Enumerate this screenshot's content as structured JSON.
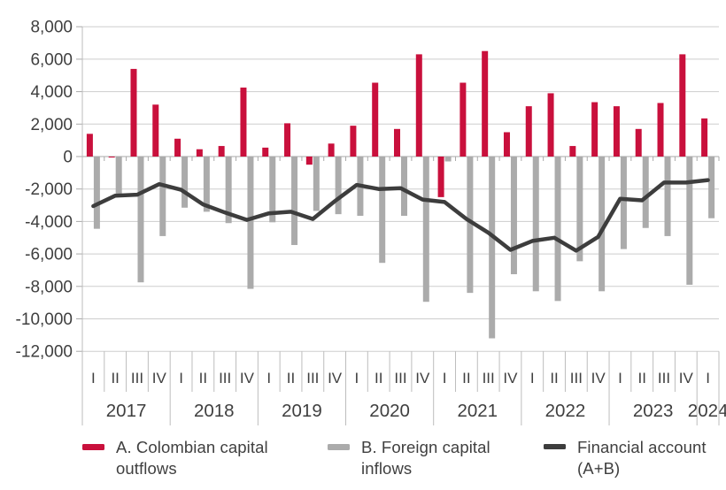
{
  "chart_data": {
    "type": "bar",
    "subtype": "bar-and-line-combo",
    "title": "",
    "xlabel": "",
    "ylabel": "",
    "ylim": [
      -12000,
      8000
    ],
    "grid": true,
    "grid_step": 2000,
    "legend_position": "bottom",
    "y_tick_labels": [
      "8,000",
      "6,000",
      "4,000",
      "2,000",
      "0",
      "-2,000",
      "-4,000",
      "-6,000",
      "-8,000",
      "-10,000",
      "-12,000"
    ],
    "categories": [
      {
        "year": "2017",
        "quarters": [
          "I",
          "II",
          "III",
          "IV"
        ]
      },
      {
        "year": "2018",
        "quarters": [
          "I",
          "II",
          "III",
          "IV"
        ]
      },
      {
        "year": "2019",
        "quarters": [
          "I",
          "II",
          "III",
          "IV"
        ]
      },
      {
        "year": "2020",
        "quarters": [
          "I",
          "II",
          "III",
          "IV"
        ]
      },
      {
        "year": "2021",
        "quarters": [
          "I",
          "II",
          "III",
          "IV"
        ]
      },
      {
        "year": "2022",
        "quarters": [
          "I",
          "II",
          "III",
          "IV"
        ]
      },
      {
        "year": "2023",
        "quarters": [
          "I",
          "II",
          "III",
          "IV"
        ]
      },
      {
        "year": "2024",
        "quarters": [
          "I"
        ]
      }
    ],
    "series": [
      {
        "name": "A. Colombian capital outflows",
        "type": "bar",
        "color": "#C9103C",
        "values": [
          1400,
          -60,
          5400,
          3200,
          1100,
          450,
          650,
          4250,
          550,
          2050,
          -500,
          800,
          1900,
          4550,
          1700,
          6300,
          -2500,
          4550,
          6500,
          1500,
          3100,
          3900,
          650,
          3350,
          3100,
          1700,
          3300,
          6300,
          2350
        ]
      },
      {
        "name": "B. Foreign capital inflows",
        "type": "bar",
        "color": "#ABABAB",
        "values": [
          -4450,
          -2350,
          -7750,
          -4900,
          -3150,
          -3400,
          -4100,
          -8150,
          -4050,
          -5450,
          -3350,
          -3550,
          -3650,
          -6550,
          -3650,
          -8950,
          -300,
          -8400,
          -11200,
          -7250,
          -8300,
          -8900,
          -6450,
          -8300,
          -5700,
          -4400,
          -4900,
          -7900,
          -3800
        ]
      },
      {
        "name": "Financial account (A+B)",
        "type": "line",
        "color": "#3D3D3D",
        "values": [
          -3050,
          -2410,
          -2350,
          -1700,
          -2050,
          -2950,
          -3450,
          -3900,
          -3500,
          -3400,
          -3850,
          -2750,
          -1750,
          -2000,
          -1950,
          -2650,
          -2800,
          -3850,
          -4700,
          -5750,
          -5200,
          -5000,
          -5800,
          -4950,
          -2600,
          -2700,
          -1600,
          -1600,
          -1450
        ]
      }
    ]
  },
  "legend": {
    "items": [
      {
        "label": "A. Colombian capital outflows",
        "color": "#C9103C",
        "swatch": "bar"
      },
      {
        "label": "B. Foreign capital inflows",
        "color": "#ABABAB",
        "swatch": "bar"
      },
      {
        "label": "Financial account (A+B)",
        "color": "#3D3D3D",
        "swatch": "line"
      }
    ]
  },
  "colors": {
    "outflows_red": "#C9103C",
    "inflows_gray": "#ABABAB",
    "line_dark": "#3D3D3D",
    "gridline": "#CDCDCD",
    "axis_line": "#BDBDBD",
    "tick": "#A9A9A9",
    "text": "#3F3F3F",
    "background": "#FFFFFF"
  }
}
